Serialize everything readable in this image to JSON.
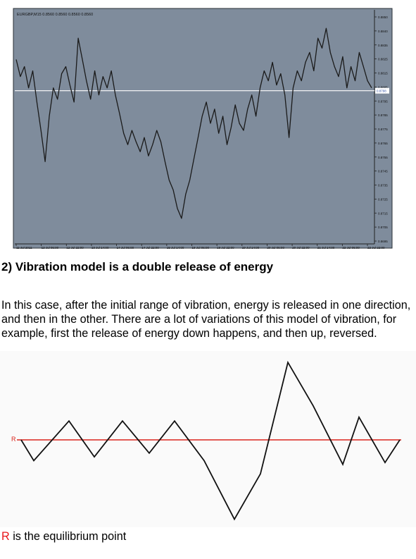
{
  "chart_data": [
    {
      "type": "line",
      "title": "EURGBP,M15  0.8560 0.8560 0.8560 0.8560",
      "x_tick_labels": [
        "11 Jul 2011",
        "12 Jul 06:00",
        "12 Jul 22:00",
        "13 Jul 14:00",
        "14 Jul 06:00",
        "14 Jul 22:00",
        "15 Jul 14:00",
        "18 Jul 06:00",
        "18 Jul 22:00",
        "19 Jul 14:00",
        "20 Jul 06:00",
        "20 Jul 22:00",
        "21 Jul 14:00",
        "22 Jul 06:00",
        "22 Jul 22:00"
      ],
      "y_tick_labels": [
        "0.8850",
        "0.8840",
        "0.8835",
        "0.8825",
        "0.8815",
        "0.8805",
        "0.8795",
        "0.8785",
        "0.8775",
        "0.8765",
        "0.8755",
        "0.8745",
        "0.8735",
        "0.8725",
        "0.8715",
        "0.8705",
        "0.8695"
      ],
      "ylim": [
        0.869,
        0.8855
      ],
      "current_price_label": "0.8798",
      "current_price": 0.8798,
      "series": [
        {
          "values": [
            0.882,
            0.8808,
            0.8815,
            0.88,
            0.8812,
            0.879,
            0.877,
            0.8748,
            0.878,
            0.88,
            0.8792,
            0.881,
            0.8815,
            0.8802,
            0.879,
            0.8835,
            0.882,
            0.8805,
            0.8792,
            0.8812,
            0.8795,
            0.8808,
            0.88,
            0.8812,
            0.8795,
            0.8782,
            0.8768,
            0.876,
            0.877,
            0.8762,
            0.8755,
            0.8765,
            0.8752,
            0.876,
            0.877,
            0.8762,
            0.8748,
            0.8735,
            0.8728,
            0.8715,
            0.8708,
            0.8725,
            0.8735,
            0.875,
            0.8765,
            0.878,
            0.879,
            0.8775,
            0.8785,
            0.8768,
            0.878,
            0.876,
            0.8772,
            0.8788,
            0.8775,
            0.877,
            0.8785,
            0.8795,
            0.878,
            0.88,
            0.8812,
            0.8805,
            0.8818,
            0.8802,
            0.881,
            0.8795,
            0.8765,
            0.88,
            0.8812,
            0.8805,
            0.8818,
            0.8825,
            0.8812,
            0.8835,
            0.8828,
            0.8842,
            0.8825,
            0.8815,
            0.8808,
            0.8822,
            0.88,
            0.8815,
            0.8805,
            0.8825,
            0.8815,
            0.8805,
            0.88
          ]
        }
      ]
    },
    {
      "type": "line",
      "series": [
        {
          "values": [
            0,
            -1.1,
            1.0,
            -0.9,
            1.0,
            -0.7,
            1.0,
            -1.1,
            -4.2,
            -1.8,
            4.1,
            1.8,
            -1.3,
            1.2,
            -1.2,
            0
          ]
        }
      ],
      "equilibrium_label": "R",
      "equilibrium_value": 0,
      "colors": {
        "line": "#111111",
        "equilibrium": "#d9241c"
      }
    }
  ],
  "heading": "2) Vibration model is a double release of energy",
  "paragraph": "In this case, after the initial range of vibration, energy is released in one direction, and then in the other. There are a lot of variations of this model of vibration, for example, first the release of energy down happens, and then up, reversed.",
  "caption": {
    "symbol": "R",
    "text": " is the equilibrium point"
  },
  "colors": {
    "chart_bg": "#7f8c9c",
    "price_line": "#1a1a1a",
    "equilibrium_line": "#ffffff",
    "caption_symbol": "#e8161a"
  }
}
